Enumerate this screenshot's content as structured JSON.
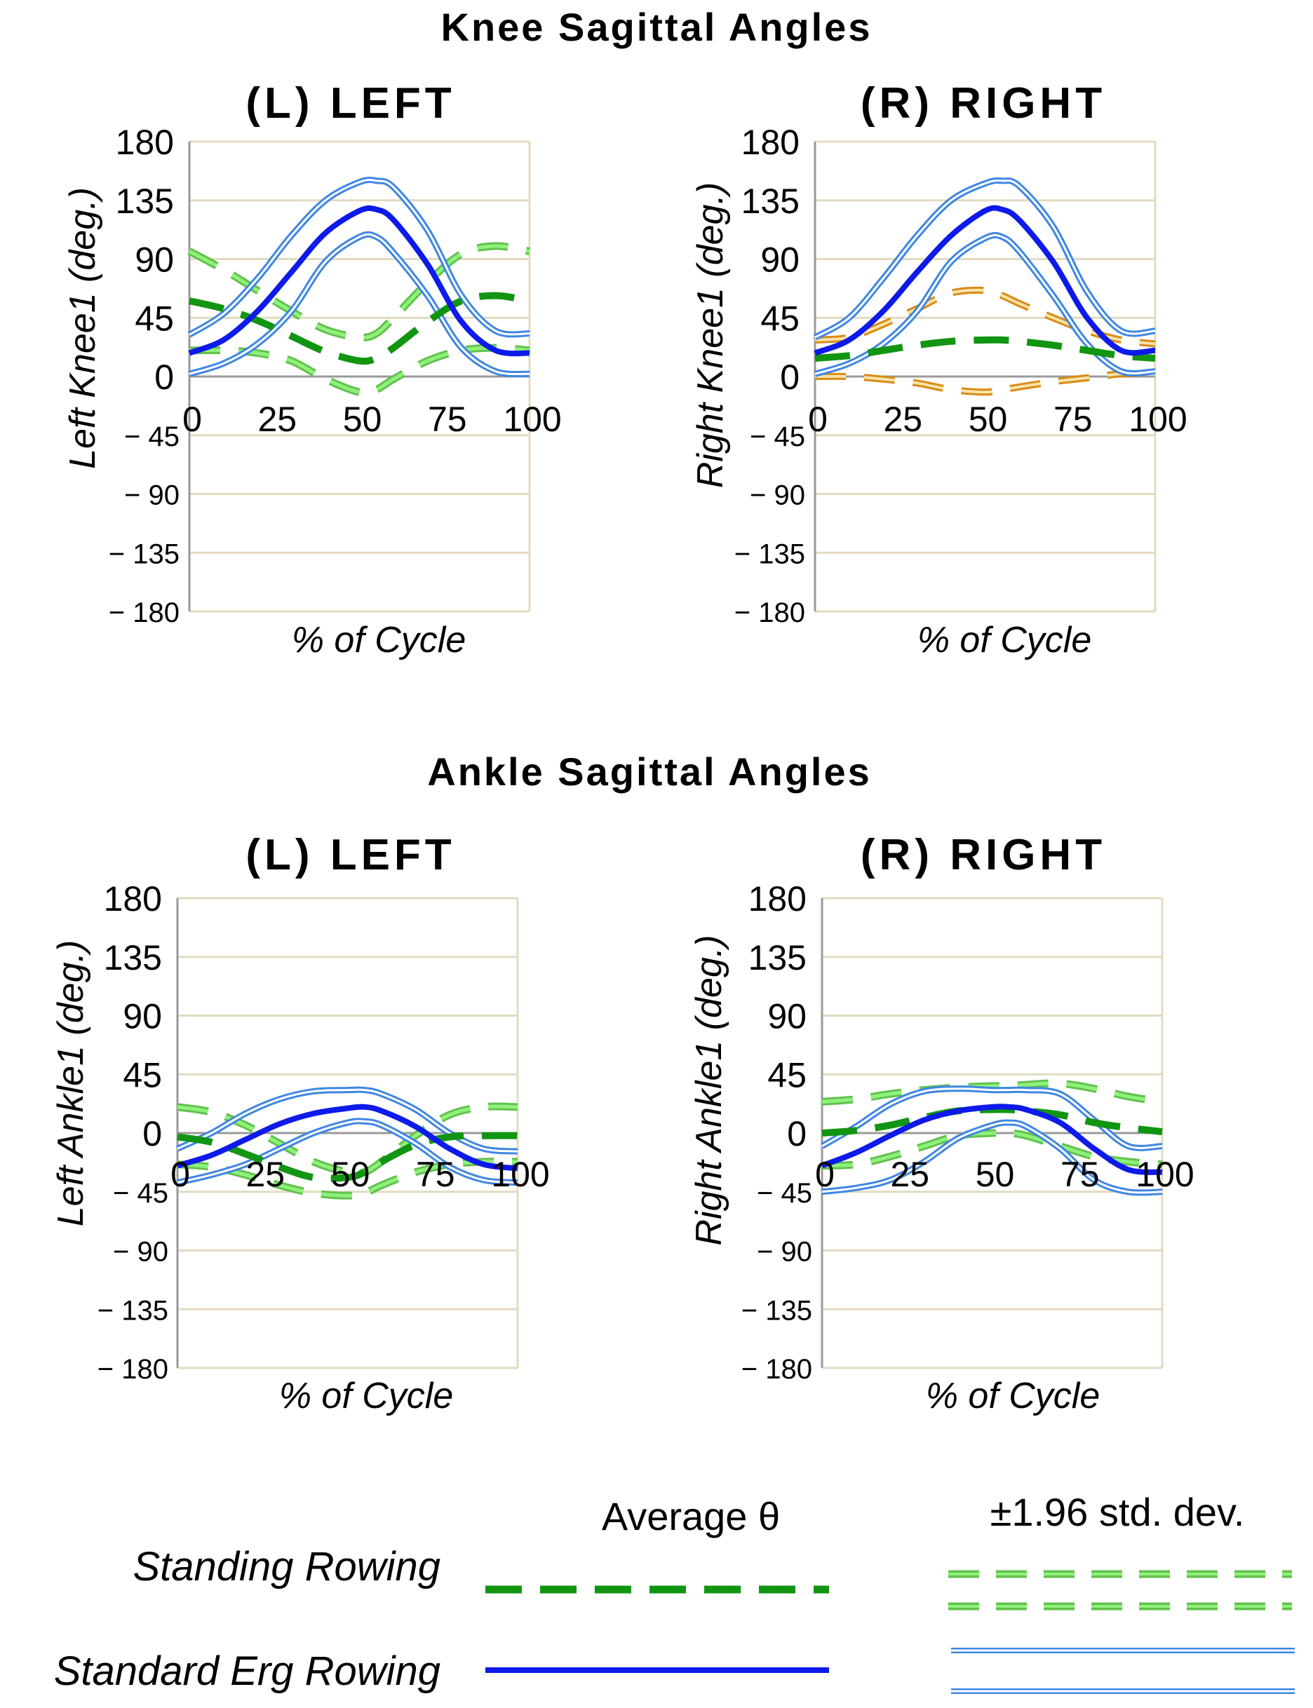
{
  "colors": {
    "grid": "#e3dbbf",
    "axis": "#9a9a9a",
    "standing_avg": "#129512",
    "standing_band": "#8ef27a",
    "standing_band_edge": "#62c14e",
    "erg_avg": "#0d1aea",
    "erg_band": "#3f86e2",
    "erg_band_inner": "#ffffff",
    "orange_band": "#d98a16",
    "orange_band_inner": "#f6e3a8"
  },
  "sections": [
    {
      "title": "Knee Sagittal Angles"
    },
    {
      "title": "Ankle Sagittal Angles"
    }
  ],
  "legend": {
    "avg_header": "Average θ",
    "std_header": "±1.96 std. dev.",
    "rows": [
      {
        "label": "Standing Rowing"
      },
      {
        "label": "Standard Erg Rowing"
      }
    ]
  },
  "chart_data": [
    {
      "type": "line",
      "title": "(L) LEFT",
      "section": "Knee Sagittal Angles",
      "xlabel": "% of Cycle",
      "ylabel": "Left Knee1 (deg.)",
      "xlim": [
        0,
        100
      ],
      "ylim": [
        -180,
        180
      ],
      "xticks": [
        "0",
        "25",
        "50",
        "75",
        "100"
      ],
      "yticks": [
        "180",
        "135",
        "90",
        "45",
        "0",
        "− 45",
        "− 90",
        "− 135",
        "− 180"
      ],
      "grid": true,
      "x": [
        0,
        10,
        20,
        30,
        40,
        50,
        55,
        60,
        70,
        80,
        90,
        100
      ],
      "series": [
        {
          "name": "Standard Erg Rowing +1.96 SD",
          "style": "erg-band",
          "values": [
            32,
            48,
            75,
            108,
            135,
            149,
            150,
            145,
            112,
            62,
            35,
            33
          ]
        },
        {
          "name": "Standard Erg Rowing average",
          "style": "erg-avg",
          "values": [
            18,
            28,
            50,
            80,
            110,
            127,
            128,
            120,
            86,
            42,
            20,
            18
          ]
        },
        {
          "name": "Standard Erg Rowing -1.96 SD",
          "style": "erg-band",
          "values": [
            2,
            10,
            25,
            50,
            88,
            107,
            107,
            95,
            62,
            22,
            4,
            2
          ]
        },
        {
          "name": "Standing Rowing +1.96 SD",
          "style": "standing-band",
          "values": [
            96,
            82,
            66,
            50,
            36,
            30,
            33,
            45,
            72,
            94,
            100,
            96
          ]
        },
        {
          "name": "Standing Rowing average",
          "style": "standing-avg",
          "values": [
            58,
            52,
            43,
            31,
            19,
            12,
            14,
            22,
            42,
            58,
            62,
            58
          ]
        },
        {
          "name": "Standing Rowing -1.96 SD",
          "style": "standing-band",
          "values": [
            20,
            20,
            18,
            12,
            -2,
            -12,
            -10,
            -2,
            12,
            20,
            22,
            20
          ]
        }
      ]
    },
    {
      "type": "line",
      "title": "(R) RIGHT",
      "section": "Knee Sagittal Angles",
      "xlabel": "% of Cycle",
      "ylabel": "Right Knee1 (deg.)",
      "xlim": [
        0,
        100
      ],
      "ylim": [
        -180,
        180
      ],
      "xticks": [
        "0",
        "25",
        "50",
        "75",
        "100"
      ],
      "yticks": [
        "180",
        "135",
        "90",
        "45",
        "0",
        "− 45",
        "− 90",
        "− 135",
        "− 180"
      ],
      "grid": true,
      "x": [
        0,
        10,
        20,
        30,
        40,
        50,
        55,
        60,
        70,
        80,
        90,
        100
      ],
      "series": [
        {
          "name": "Standard Erg Rowing +1.96 SD",
          "style": "erg-band",
          "values": [
            30,
            45,
            75,
            108,
            135,
            148,
            150,
            146,
            115,
            65,
            35,
            35
          ]
        },
        {
          "name": "Standard Erg Rowing average",
          "style": "erg-avg",
          "values": [
            18,
            28,
            50,
            80,
            108,
            127,
            128,
            120,
            88,
            45,
            20,
            20
          ]
        },
        {
          "name": "Standard Erg Rowing -1.96 SD",
          "style": "erg-band",
          "values": [
            2,
            10,
            25,
            50,
            88,
            106,
            107,
            96,
            62,
            25,
            4,
            4
          ]
        },
        {
          "name": "Standing Rowing +1.96 SD",
          "style": "orange-band",
          "values": [
            28,
            30,
            40,
            52,
            64,
            66,
            62,
            56,
            45,
            35,
            28,
            25
          ]
        },
        {
          "name": "Standing Rowing average",
          "style": "standing-avg",
          "values": [
            14,
            16,
            20,
            24,
            27,
            28,
            28,
            27,
            24,
            20,
            16,
            14
          ]
        },
        {
          "name": "Standing Rowing -1.96 SD",
          "style": "orange-band",
          "values": [
            0,
            0,
            -2,
            -5,
            -10,
            -12,
            -10,
            -8,
            -4,
            -1,
            2,
            2
          ]
        }
      ]
    },
    {
      "type": "line",
      "title": "(L) LEFT",
      "section": "Ankle Sagittal Angles",
      "xlabel": "% of Cycle",
      "ylabel": "Left Ankle1 (deg.)",
      "xlim": [
        0,
        100
      ],
      "ylim": [
        -180,
        180
      ],
      "xticks": [
        "0",
        "25",
        "50",
        "75",
        "100"
      ],
      "yticks": [
        "180",
        "135",
        "90",
        "45",
        "0",
        "− 45",
        "− 90",
        "− 135",
        "− 180"
      ],
      "grid": true,
      "x": [
        0,
        10,
        20,
        30,
        40,
        50,
        55,
        60,
        70,
        80,
        90,
        100
      ],
      "series": [
        {
          "name": "Standard Erg Rowing +1.96 SD",
          "style": "erg-band",
          "values": [
            -12,
            0,
            15,
            26,
            32,
            33,
            33,
            30,
            18,
            0,
            -12,
            -14
          ]
        },
        {
          "name": "Standard Erg Rowing average",
          "style": "erg-avg",
          "values": [
            -25,
            -17,
            -5,
            7,
            15,
            19,
            20,
            17,
            5,
            -12,
            -24,
            -27
          ]
        },
        {
          "name": "Standard Erg Rowing -1.96 SD",
          "style": "erg-band",
          "values": [
            -38,
            -32,
            -24,
            -12,
            0,
            8,
            9,
            6,
            -8,
            -26,
            -36,
            -38
          ]
        },
        {
          "name": "Standing Rowing +1.96 SD",
          "style": "standing-band",
          "values": [
            20,
            16,
            6,
            -8,
            -22,
            -30,
            -30,
            -22,
            -2,
            14,
            20,
            20
          ]
        },
        {
          "name": "Standing Rowing average",
          "style": "standing-avg",
          "values": [
            -3,
            -7,
            -16,
            -26,
            -34,
            -34,
            -30,
            -22,
            -9,
            -3,
            -2,
            -2
          ]
        },
        {
          "name": "Standing Rowing -1.96 SD",
          "style": "standing-band",
          "values": [
            -24,
            -26,
            -32,
            -40,
            -46,
            -48,
            -46,
            -40,
            -30,
            -24,
            -22,
            -22
          ]
        }
      ]
    },
    {
      "type": "line",
      "title": "(R) RIGHT",
      "section": "Ankle Sagittal Angles",
      "xlabel": "% of Cycle",
      "ylabel": "Right Ankle1 (deg.)",
      "xlim": [
        0,
        100
      ],
      "ylim": [
        -180,
        180
      ],
      "xticks": [
        "0",
        "25",
        "50",
        "75",
        "100"
      ],
      "yticks": [
        "180",
        "135",
        "90",
        "45",
        "0",
        "− 45",
        "− 90",
        "− 135",
        "− 180"
      ],
      "grid": true,
      "x": [
        0,
        10,
        20,
        30,
        40,
        50,
        55,
        60,
        70,
        80,
        90,
        100
      ],
      "series": [
        {
          "name": "Standard Erg Rowing +1.96 SD",
          "style": "erg-band",
          "values": [
            -10,
            5,
            22,
            32,
            34,
            33,
            33,
            33,
            30,
            10,
            -10,
            -10
          ]
        },
        {
          "name": "Standard Erg Rowing average",
          "style": "erg-avg",
          "values": [
            -25,
            -15,
            -2,
            10,
            17,
            20,
            20,
            18,
            8,
            -12,
            -28,
            -30
          ]
        },
        {
          "name": "Standard Erg Rowing -1.96 SD",
          "style": "erg-band",
          "values": [
            -45,
            -42,
            -36,
            -22,
            -4,
            6,
            8,
            5,
            -12,
            -36,
            -45,
            -45
          ]
        },
        {
          "name": "Standing Rowing +1.96 SD",
          "style": "standing-band",
          "values": [
            24,
            26,
            30,
            33,
            35,
            36,
            36,
            37,
            38,
            34,
            28,
            24
          ]
        },
        {
          "name": "Standing Rowing average",
          "style": "standing-avg",
          "values": [
            0,
            2,
            6,
            12,
            17,
            18,
            18,
            17,
            14,
            8,
            4,
            1
          ]
        },
        {
          "name": "Standing Rowing -1.96 SD",
          "style": "standing-band",
          "values": [
            -25,
            -24,
            -18,
            -10,
            -2,
            0,
            0,
            -2,
            -10,
            -18,
            -22,
            -24
          ]
        }
      ]
    }
  ]
}
